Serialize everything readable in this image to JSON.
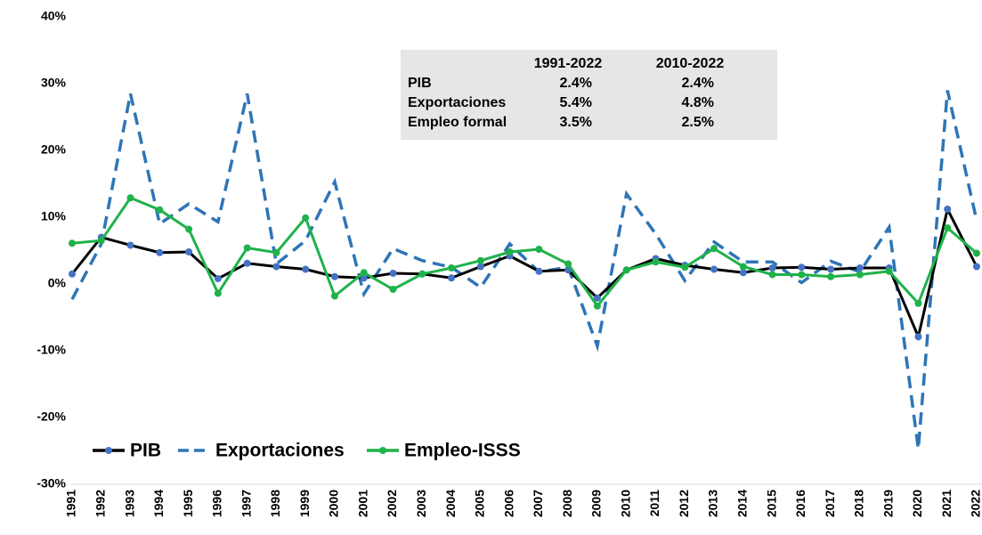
{
  "chart_data": {
    "type": "line",
    "categories": [
      "1991",
      "1992",
      "1993",
      "1994",
      "1995",
      "1996",
      "1997",
      "1998",
      "1999",
      "2000",
      "2001",
      "2002",
      "2003",
      "2004",
      "2005",
      "2006",
      "2007",
      "2008",
      "2009",
      "2010",
      "2011",
      "2012",
      "2013",
      "2014",
      "2015",
      "2016",
      "2017",
      "2018",
      "2019",
      "2020",
      "2021",
      "2022"
    ],
    "series": [
      {
        "name": "PIB",
        "color": "#000000",
        "marker_color": "#4472c4",
        "dashed": false,
        "values": [
          1.5,
          7.0,
          5.8,
          4.7,
          4.8,
          0.8,
          3.1,
          2.6,
          2.2,
          1.1,
          0.9,
          1.6,
          1.5,
          0.9,
          2.6,
          4.2,
          1.9,
          2.1,
          -2.1,
          2.1,
          3.8,
          2.8,
          2.2,
          1.7,
          2.4,
          2.5,
          2.2,
          2.4,
          2.4,
          -7.9,
          11.2,
          2.6
        ]
      },
      {
        "name": "Exportaciones",
        "color": "#2e75b6",
        "dashed": true,
        "values": [
          -2.3,
          6.0,
          28.5,
          9.0,
          12.0,
          9.3,
          28.5,
          3.0,
          6.5,
          15.3,
          -1.5,
          5.3,
          3.5,
          2.5,
          -0.5,
          6.0,
          1.8,
          2.5,
          -9.3,
          13.5,
          7.5,
          0.5,
          6.3,
          3.3,
          3.3,
          0.2,
          3.4,
          1.8,
          8.5,
          -24.7,
          29.0,
          9.5
        ]
      },
      {
        "name": "Empleo-ISSS",
        "color": "#1fb24a",
        "marker_color": "#1fb24a",
        "dashed": false,
        "values": [
          6.1,
          6.5,
          12.9,
          11.1,
          8.2,
          -1.4,
          5.4,
          4.7,
          9.9,
          -1.8,
          1.7,
          -0.8,
          1.5,
          2.4,
          3.5,
          4.8,
          5.2,
          3.0,
          -3.3,
          2.1,
          3.3,
          2.5,
          5.3,
          2.6,
          1.4,
          1.4,
          1.1,
          1.4,
          1.9,
          -2.9,
          8.4,
          4.6
        ]
      }
    ],
    "ylim": [
      -30,
      40
    ],
    "yticks": [
      {
        "value": -30,
        "label": "-30%"
      },
      {
        "value": -20,
        "label": "-20%"
      },
      {
        "value": -10,
        "label": "-10%"
      },
      {
        "value": 0,
        "label": "0%"
      },
      {
        "value": 10,
        "label": "10%"
      },
      {
        "value": 20,
        "label": "20%"
      },
      {
        "value": 30,
        "label": "30%"
      },
      {
        "value": 40,
        "label": "40%"
      }
    ],
    "grid": false,
    "legend": "lower left",
    "table": {
      "header": [
        "1991-2022",
        "2010-2022"
      ],
      "rows": [
        {
          "label": "PIB",
          "cells": [
            "2.4%",
            "2.4%"
          ]
        },
        {
          "label": "Exportaciones",
          "cells": [
            "5.4%",
            "4.8%"
          ]
        },
        {
          "label": "Empleo formal",
          "cells": [
            "3.5%",
            "2.5%"
          ]
        }
      ]
    }
  }
}
